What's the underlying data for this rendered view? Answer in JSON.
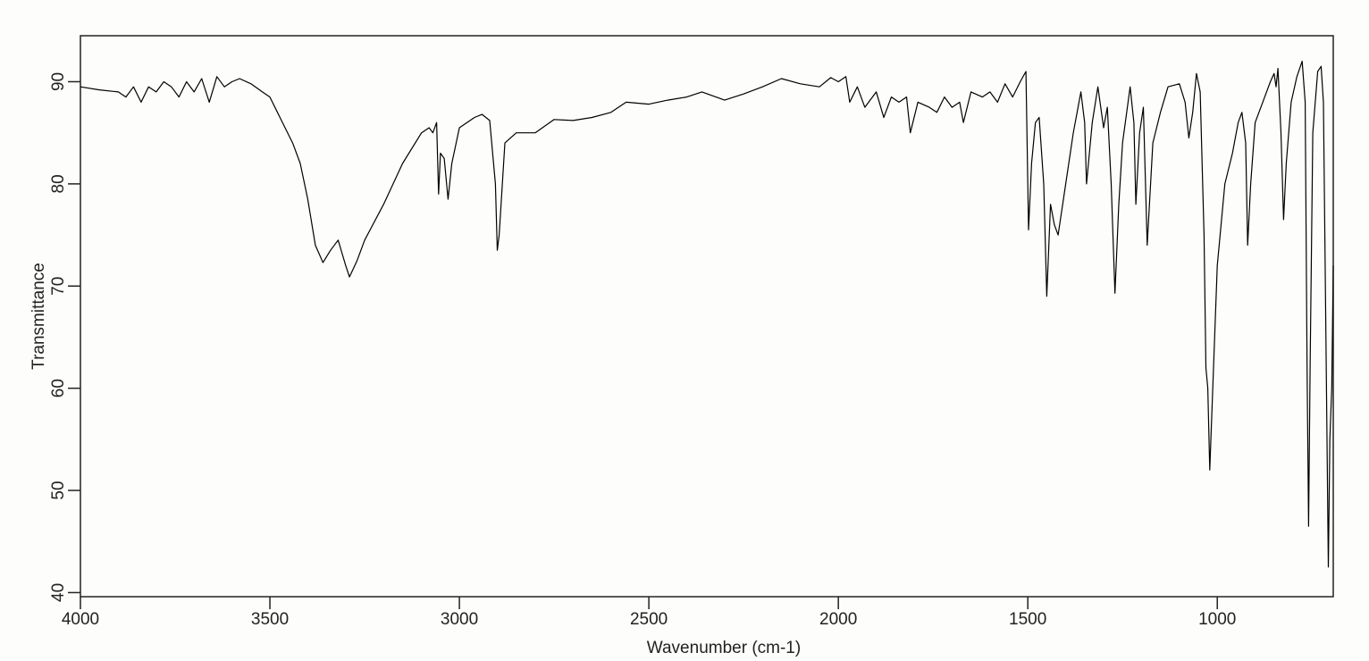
{
  "chart_data": {
    "type": "line",
    "xlabel": "Wavenumber (cm-1)",
    "ylabel": "Transmittance",
    "x": [
      4000,
      3950,
      3900,
      3880,
      3860,
      3840,
      3820,
      3800,
      3780,
      3760,
      3740,
      3720,
      3700,
      3680,
      3660,
      3640,
      3620,
      3600,
      3580,
      3550,
      3520,
      3500,
      3480,
      3460,
      3440,
      3420,
      3400,
      3380,
      3360,
      3340,
      3320,
      3300,
      3290,
      3270,
      3250,
      3200,
      3150,
      3100,
      3080,
      3070,
      3060,
      3055,
      3050,
      3040,
      3030,
      3020,
      3000,
      2960,
      2940,
      2920,
      2905,
      2900,
      2895,
      2880,
      2850,
      2800,
      2750,
      2700,
      2650,
      2600,
      2560,
      2500,
      2450,
      2400,
      2360,
      2300,
      2250,
      2200,
      2150,
      2100,
      2050,
      2020,
      2000,
      1980,
      1970,
      1950,
      1930,
      1900,
      1880,
      1860,
      1840,
      1820,
      1810,
      1790,
      1760,
      1740,
      1720,
      1700,
      1680,
      1670,
      1650,
      1620,
      1600,
      1580,
      1560,
      1540,
      1520,
      1505,
      1498,
      1490,
      1480,
      1470,
      1458,
      1450,
      1440,
      1430,
      1420,
      1400,
      1380,
      1360,
      1350,
      1345,
      1330,
      1315,
      1300,
      1290,
      1280,
      1270,
      1260,
      1250,
      1230,
      1220,
      1215,
      1205,
      1195,
      1185,
      1170,
      1150,
      1130,
      1100,
      1085,
      1075,
      1065,
      1055,
      1045,
      1035,
      1030,
      1025,
      1020,
      1010,
      1000,
      980,
      960,
      945,
      935,
      925,
      920,
      912,
      900,
      880,
      860,
      850,
      845,
      840,
      832,
      825,
      818,
      805,
      790,
      776,
      768,
      763,
      759,
      755,
      748,
      735,
      726,
      720,
      712,
      707,
      703,
      698,
      694
    ],
    "values": [
      89.5,
      89.2,
      89,
      88.5,
      89.5,
      88,
      89.5,
      89,
      90,
      89.5,
      88.5,
      90,
      89,
      90.3,
      88,
      90.5,
      89.5,
      90,
      90.3,
      89.8,
      89,
      88.5,
      87,
      85.5,
      84,
      82,
      78.5,
      74,
      72.3,
      73.5,
      74.5,
      72,
      70.9,
      72.5,
      74.5,
      78,
      82,
      85,
      85.5,
      85,
      86,
      79,
      83,
      82.5,
      78.5,
      82,
      85.5,
      86.5,
      86.8,
      86.2,
      80,
      73.5,
      75,
      84,
      85,
      85,
      86.3,
      86.2,
      86.5,
      87,
      88,
      87.8,
      88.2,
      88.5,
      89,
      88.2,
      88.8,
      89.5,
      90.3,
      89.8,
      89.5,
      90.4,
      90,
      90.5,
      88,
      89.5,
      87.5,
      89,
      86.5,
      88.5,
      88,
      88.5,
      85,
      88,
      87.5,
      87,
      88.5,
      87.5,
      88,
      86,
      89,
      88.5,
      89,
      88,
      89.8,
      88.5,
      90,
      91,
      75.5,
      82,
      86,
      86.5,
      80,
      69,
      78,
      76,
      75,
      80,
      85,
      89,
      86,
      80,
      86,
      89.5,
      85.5,
      87.5,
      80,
      69.3,
      78,
      84,
      89.5,
      86,
      78,
      85,
      87.5,
      74,
      84,
      87,
      89.5,
      89.8,
      88,
      84.5,
      87,
      90.8,
      89,
      75,
      62,
      60,
      52,
      62,
      72,
      80,
      83,
      86,
      87,
      84,
      74,
      80,
      86,
      88,
      90,
      90.8,
      89.5,
      91.3,
      85,
      76.5,
      82,
      88,
      90.5,
      92,
      88,
      62,
      46.5,
      62,
      85,
      91,
      91.5,
      88,
      60,
      42.5,
      55,
      60,
      72
    ],
    "color": "#000000",
    "xlim": [
      4000,
      694
    ],
    "ylim": [
      39.6,
      94.5
    ],
    "xticks": [
      4000,
      3500,
      3000,
      2500,
      2000,
      1500,
      1000
    ],
    "yticks": [
      40,
      50,
      60,
      70,
      80,
      90
    ]
  }
}
